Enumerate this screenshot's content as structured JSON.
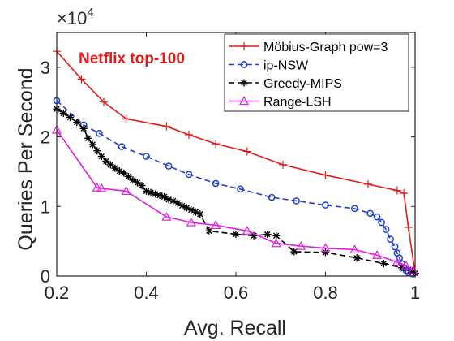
{
  "chart_data": {
    "type": "line",
    "annotation": "Netflix top-100",
    "xlabel": "Avg. Recall",
    "ylabel": "Queries Per Second",
    "y_multiplier": "×10",
    "y_multiplier_exp": "4",
    "xlim": [
      0.2,
      1.0
    ],
    "ylim": [
      0,
      35000
    ],
    "x_ticks": [
      0.2,
      0.4,
      0.6,
      0.8,
      1.0
    ],
    "x_tick_labels": [
      "0.2",
      "0.4",
      "0.6",
      "0.8",
      "1"
    ],
    "y_ticks": [
      0,
      10000,
      20000,
      30000
    ],
    "y_tick_labels": [
      "0",
      "1",
      "2",
      "3"
    ],
    "grid": false,
    "legend_position": "top-right",
    "colors": {
      "mobius": "#e41a1a",
      "ipnsw": "#1f3fd6",
      "greedy": "#000000",
      "range": "#e020e0",
      "annotation": "#e41a1a"
    },
    "series": [
      {
        "name": "Möbius-Graph pow=3",
        "marker": "plus",
        "line": "solid",
        "x": [
          0.2,
          0.255,
          0.305,
          0.355,
          0.445,
          0.495,
          0.555,
          0.625,
          0.705,
          0.8,
          0.895,
          0.96,
          0.975,
          0.985,
          1.0
        ],
        "y": [
          32300,
          28300,
          25000,
          22600,
          21500,
          20300,
          19000,
          17900,
          16000,
          14500,
          13200,
          12300,
          11900,
          7000,
          400
        ]
      },
      {
        "name": "ip-NSW",
        "marker": "circle",
        "line": "dashed",
        "x": [
          0.2,
          0.26,
          0.295,
          0.345,
          0.4,
          0.45,
          0.495,
          0.555,
          0.61,
          0.68,
          0.735,
          0.8,
          0.865,
          0.9,
          0.915,
          0.925,
          0.935,
          0.945,
          0.955,
          0.96,
          0.965,
          0.97,
          0.975,
          0.98,
          0.985,
          0.995
        ],
        "y": [
          25200,
          21700,
          20500,
          18600,
          17200,
          15800,
          14600,
          13300,
          12500,
          11300,
          10800,
          10200,
          9700,
          9000,
          8500,
          7700,
          6700,
          5300,
          4200,
          3300,
          2600,
          1800,
          1200,
          800,
          500,
          300
        ]
      },
      {
        "name": "Greedy-MIPS",
        "marker": "asterisk",
        "line": "dashed",
        "x": [
          0.2,
          0.215,
          0.23,
          0.245,
          0.26,
          0.27,
          0.28,
          0.29,
          0.3,
          0.31,
          0.32,
          0.33,
          0.34,
          0.35,
          0.36,
          0.37,
          0.38,
          0.39,
          0.4,
          0.41,
          0.42,
          0.43,
          0.44,
          0.45,
          0.46,
          0.47,
          0.48,
          0.49,
          0.5,
          0.51,
          0.52,
          0.54,
          0.6,
          0.64,
          0.67,
          0.69,
          0.73,
          0.8,
          0.87,
          0.93,
          0.97,
          0.99,
          1.0
        ],
        "y": [
          24000,
          23400,
          22800,
          22100,
          21200,
          19800,
          18900,
          18000,
          17200,
          16500,
          16000,
          15500,
          15100,
          14800,
          14300,
          13800,
          13400,
          13000,
          12200,
          12000,
          11800,
          11600,
          11400,
          11000,
          10800,
          10500,
          10100,
          9800,
          9500,
          9200,
          8900,
          6500,
          6000,
          5800,
          6000,
          5800,
          3500,
          3400,
          2600,
          1800,
          1200,
          800,
          400
        ]
      },
      {
        "name": "Range-LSH",
        "marker": "triangle",
        "line": "solid",
        "x": [
          0.2,
          0.29,
          0.3,
          0.355,
          0.445,
          0.5,
          0.555,
          0.625,
          0.69,
          0.745,
          0.8,
          0.865,
          0.915,
          0.96,
          0.98,
          0.995
        ],
        "y": [
          21000,
          12700,
          12600,
          12200,
          8500,
          7700,
          7300,
          6500,
          4700,
          4300,
          4000,
          3800,
          3000,
          2000,
          1500,
          800
        ]
      }
    ]
  }
}
